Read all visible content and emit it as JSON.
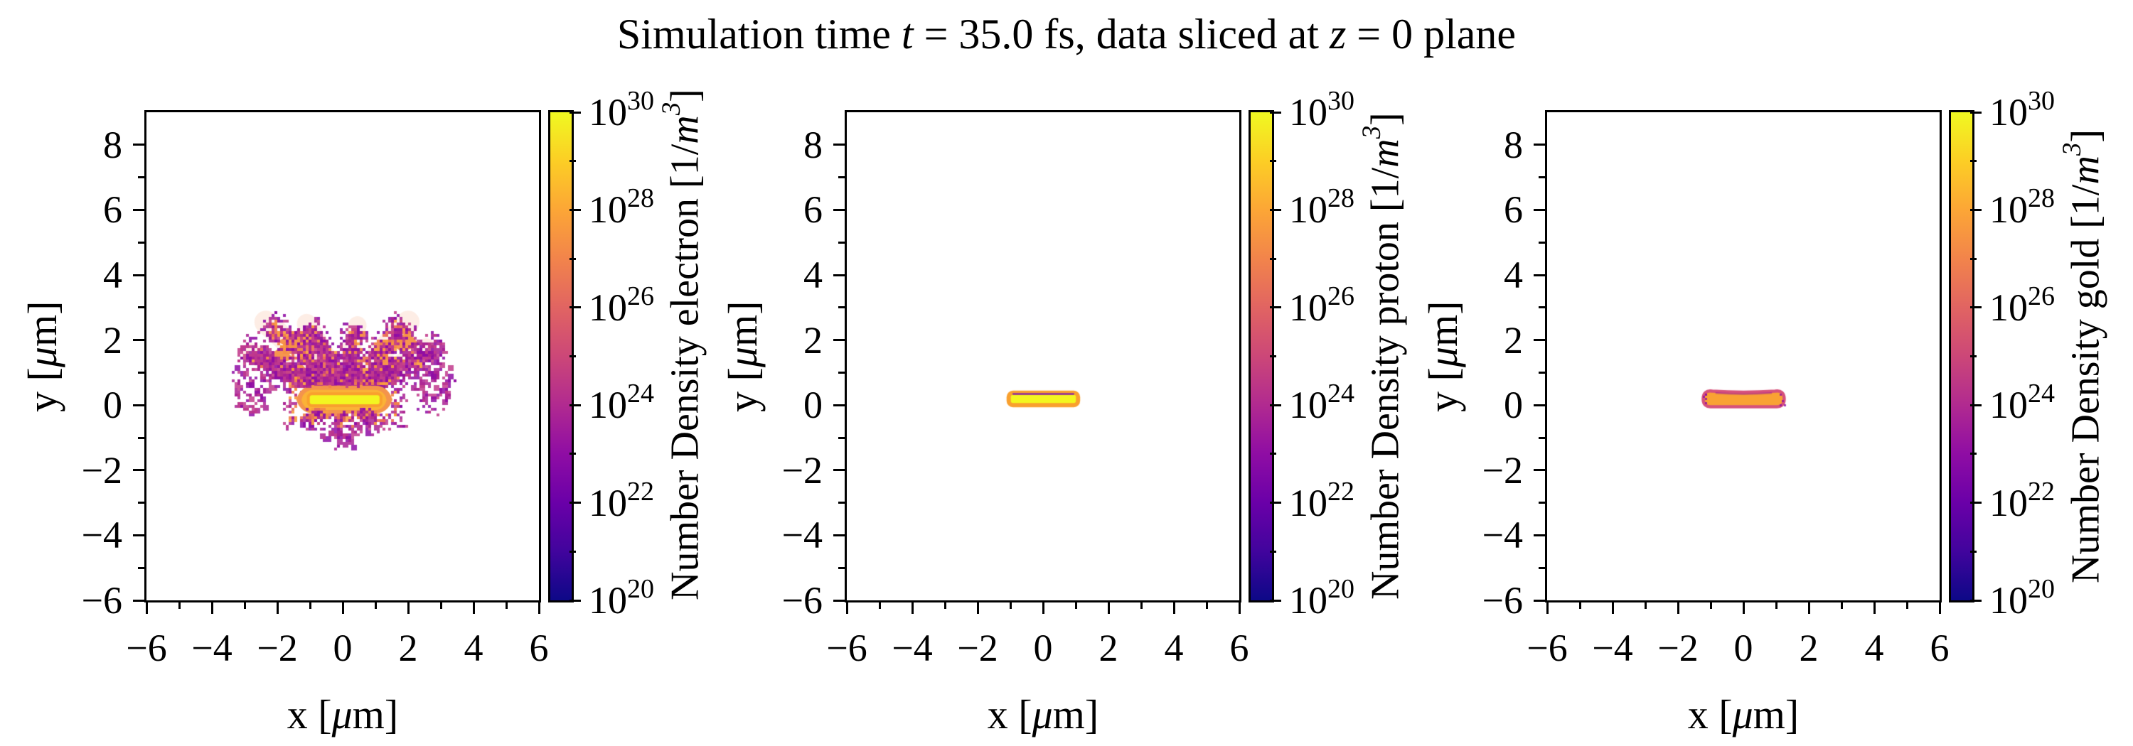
{
  "title": {
    "parts": [
      {
        "t": "Simulation time "
      },
      {
        "t": "t",
        "i": true
      },
      {
        "t": " = 35.0 fs, data sliced at "
      },
      {
        "t": "z",
        "i": true
      },
      {
        "t": " = 0 plane"
      }
    ]
  },
  "axes": {
    "x_range": [
      -6,
      6
    ],
    "y_range": [
      -6,
      9
    ],
    "x_tick_labels": [
      "−6",
      "−4",
      "−2",
      "0",
      "2",
      "4",
      "6"
    ],
    "x_tick_values": [
      -6,
      -4,
      -2,
      0,
      2,
      4,
      6
    ],
    "x_minor_values": [
      -5,
      -3,
      -1,
      1,
      3,
      5
    ],
    "y_tick_labels": [
      "8",
      "6",
      "4",
      "2",
      "0",
      "−2",
      "−4",
      "−6"
    ],
    "y_tick_values": [
      8,
      6,
      4,
      2,
      0,
      -2,
      -4,
      -6
    ],
    "y_minor_values": [
      7,
      5,
      3,
      1,
      -1,
      -3,
      -5
    ],
    "xlabel_parts": [
      {
        "t": "x ["
      },
      {
        "t": "μ",
        "i": true
      },
      {
        "t": "m]"
      }
    ],
    "ylabel_parts": [
      {
        "t": "y ["
      },
      {
        "t": "μ",
        "i": true
      },
      {
        "t": "m]"
      }
    ]
  },
  "colorbar": {
    "base": "10",
    "exponents": [
      "30",
      "28",
      "26",
      "24",
      "22",
      "20"
    ],
    "exponent_values": [
      30,
      28,
      26,
      24,
      22,
      20
    ],
    "minor_values": [
      29,
      27,
      25,
      23,
      21
    ],
    "scale": "log",
    "min": "1e20",
    "max": "1e30",
    "colormap": "plasma",
    "gradient": [
      "#0d0887",
      "#41049d",
      "#6a00a8",
      "#8f0da4",
      "#b12a90",
      "#cc4778",
      "#e16462",
      "#f2844b",
      "#fca636",
      "#fcce25",
      "#f0f921"
    ]
  },
  "panels": [
    {
      "species": "electron",
      "cbar_label_parts": [
        {
          "t": "Number Density electron [1/"
        },
        {
          "t": "m",
          "i": true
        },
        {
          "t": "3",
          "i": true,
          "sup": true
        },
        {
          "t": "]"
        }
      ]
    },
    {
      "species": "proton",
      "cbar_label_parts": [
        {
          "t": "Number Density proton [1/"
        },
        {
          "t": "m",
          "i": true
        },
        {
          "t": "3",
          "i": true,
          "sup": true
        },
        {
          "t": "]"
        }
      ]
    },
    {
      "species": "gold",
      "cbar_label_parts": [
        {
          "t": "Number Density gold [1/"
        },
        {
          "t": "m",
          "i": true
        },
        {
          "t": "3",
          "i": true,
          "sup": true
        },
        {
          "t": "]"
        }
      ]
    }
  ],
  "chart_data": [
    {
      "type": "heatmap",
      "species": "electron",
      "x_unit": "μm",
      "y_unit": "μm",
      "x_range": [
        -6,
        6
      ],
      "y_range": [
        -6,
        9
      ],
      "color_scale": {
        "type": "log",
        "min": 1e+20,
        "max": 1e+30,
        "colormap": "plasma"
      },
      "features": [
        {
          "name": "target-core",
          "shape": "rect",
          "x": [
            -1.05,
            1.17
          ],
          "y": [
            0,
            0.35
          ],
          "density": "~1e30"
        },
        {
          "name": "heated-halo",
          "shape": "rounded-rect",
          "x": [
            -1.45,
            1.55
          ],
          "y": [
            -0.28,
            0.62
          ],
          "density": "~1e27"
        },
        {
          "name": "expansion-plumes",
          "shape": "scatter-arcs",
          "x": [
            -3.3,
            3.3
          ],
          "y": [
            -1.3,
            2.8
          ],
          "density": "1e23–1e27"
        }
      ],
      "render": {
        "colors": {
          "orange": "#f1824a",
          "orange2": "#f89c40",
          "orange3": "#e96c55",
          "magenta": "#aa2193",
          "magenta2": "#c13b8c",
          "purple": "#8f0da4",
          "yellow": "#f3f621",
          "core_edge": "#f9a02e",
          "halo_outer": "#f4944b",
          "halo_mid": "#fbb237",
          "wash": "rgba(241,130,74,0.14)"
        },
        "wings": [
          {
            "cx": -2.75,
            "cy": 0.7,
            "rx": 0.6,
            "ry": 1.05,
            "n": 115
          },
          {
            "cx": 2.8,
            "cy": 0.75,
            "rx": 0.6,
            "ry": 1.15,
            "n": 125
          },
          {
            "cx": 0.0,
            "cy": -0.52,
            "rx": 1.25,
            "ry": 0.6,
            "n": 105
          },
          {
            "cx": 0.0,
            "cy": -1.05,
            "rx": 0.4,
            "ry": 0.3,
            "n": 22
          }
        ],
        "plumes": [
          {
            "s": [
              -0.15,
              0.5
            ],
            "c": [
              -1.2,
              1.5
            ],
            "e": [
              -2.35,
              2.55
            ],
            "w": 0.35,
            "no": 200,
            "nm": 260
          },
          {
            "s": [
              -0.3,
              0.45
            ],
            "c": [
              -1.5,
              0.95
            ],
            "e": [
              -2.8,
              1.6
            ],
            "w": 0.3,
            "no": 140,
            "nm": 220
          },
          {
            "s": [
              -0.4,
              0.4
            ],
            "c": [
              -0.95,
              0.6
            ],
            "e": [
              -1.8,
              1.05
            ],
            "w": 0.22,
            "no": 110,
            "nm": 120
          },
          {
            "s": [
              -0.05,
              0.45
            ],
            "c": [
              -0.4,
              1.4
            ],
            "e": [
              -1.1,
              2.5
            ],
            "w": 0.3,
            "no": 150,
            "nm": 240
          },
          {
            "s": [
              0.05,
              0.45
            ],
            "c": [
              0.15,
              1.35
            ],
            "e": [
              0.45,
              2.45
            ],
            "w": 0.28,
            "no": 130,
            "nm": 230
          },
          {
            "s": [
              0.2,
              0.5
            ],
            "c": [
              1.05,
              1.5
            ],
            "e": [
              2.0,
              2.55
            ],
            "w": 0.35,
            "no": 200,
            "nm": 260
          },
          {
            "s": [
              0.3,
              0.45
            ],
            "c": [
              1.35,
              0.95
            ],
            "e": [
              2.55,
              1.75
            ],
            "w": 0.3,
            "no": 150,
            "nm": 220
          },
          {
            "s": [
              0.4,
              0.4
            ],
            "c": [
              0.95,
              0.6
            ],
            "e": [
              1.75,
              1.1
            ],
            "w": 0.22,
            "no": 120,
            "nm": 130
          },
          {
            "s": [
              1.6,
              0.9
            ],
            "c": [
              2.4,
              1.5
            ],
            "e": [
              3.0,
              2.0
            ],
            "w": 0.28,
            "no": 0,
            "nm": 150
          },
          {
            "s": [
              -1.7,
              0.85
            ],
            "c": [
              -2.45,
              1.4
            ],
            "e": [
              -3.05,
              1.9
            ],
            "w": 0.28,
            "no": 0,
            "nm": 140
          }
        ],
        "wedges": [
          [
            -1.75,
            0.88,
            -1.3,
            1.32,
            -0.95,
            0.9
          ],
          [
            -2.35,
            1.45,
            -1.85,
            1.82,
            -1.5,
            1.42,
            -1.95,
            1.28
          ],
          [
            -2.0,
            1.95,
            -1.35,
            2.32,
            -0.9,
            1.95,
            -1.5,
            1.72
          ],
          [
            1.45,
            1.9,
            2.0,
            2.28,
            2.35,
            1.85,
            1.82,
            1.62
          ],
          [
            0.95,
            1.2,
            1.35,
            1.52,
            1.6,
            1.15,
            1.2,
            1.0
          ],
          [
            0.55,
            0.7,
            0.95,
            0.97,
            1.15,
            0.65,
            0.8,
            0.5
          ],
          [
            -1.15,
            0.62,
            -0.8,
            0.9,
            -0.55,
            0.6,
            -0.9,
            0.45
          ]
        ],
        "halo": {
          "outer": [
            -1.42,
            -0.26,
            1.52,
            0.6
          ],
          "mid": [
            -1.26,
            -0.15,
            1.34,
            0.47
          ],
          "fringe_orange": 220,
          "fringe_mag": 290
        },
        "lobes": [
          [
            -0.78,
            -0.3
          ],
          [
            0.0,
            -0.44
          ],
          [
            0.78,
            -0.3
          ]
        ],
        "core": [
          -1.05,
          -0.02,
          1.17,
          0.35
        ]
      }
    },
    {
      "type": "heatmap",
      "species": "proton",
      "x_unit": "μm",
      "y_unit": "μm",
      "x_range": [
        -6,
        6
      ],
      "y_range": [
        -6,
        9
      ],
      "color_scale": {
        "type": "log",
        "min": 1e+20,
        "max": 1e+30,
        "colormap": "plasma"
      },
      "features": [
        {
          "name": "target-slab",
          "shape": "rect",
          "x": [
            -1.05,
            1.07
          ],
          "y": [
            0,
            0.38
          ],
          "density": "~1e30"
        }
      ],
      "render": {
        "bar": {
          "x0": -1.05,
          "y0": 0.0,
          "x1": 1.07,
          "y1": 0.38
        },
        "colors": {
          "fill": "#f3f71f",
          "border": "#f9a02e",
          "topline": "#8d2d9e"
        }
      }
    },
    {
      "type": "heatmap",
      "species": "gold",
      "x_unit": "μm",
      "y_unit": "μm",
      "x_range": [
        -6,
        6
      ],
      "y_range": [
        -6,
        9
      ],
      "color_scale": {
        "type": "log",
        "min": 1e+20,
        "max": 1e+30,
        "colormap": "plasma"
      },
      "features": [
        {
          "name": "target-slab",
          "shape": "dogbone",
          "x": [
            -1.18,
            1.2
          ],
          "y": [
            -0.05,
            0.42
          ],
          "density_core": "~1e28",
          "density_rim": "~1e25"
        }
      ],
      "render": {
        "bone": {
          "x0": -1.08,
          "y0": 0.0,
          "x1": 1.1,
          "y1": 0.38,
          "bulge": 0.1,
          "dip": 0.06
        },
        "colors": {
          "fill": "#f9a233",
          "rim": "#d6517b",
          "dots": "#8f0da4"
        }
      }
    }
  ]
}
